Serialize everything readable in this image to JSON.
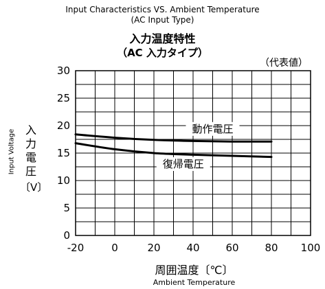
{
  "chart_data": {
    "type": "line",
    "title": "Input Characteristics VS. Ambient Temperature",
    "subtitle": "(AC Input Type)",
    "title_jp": "入力温度特性",
    "subtitle_jp": "（AC 入力タイプ）",
    "note": "（代表値）",
    "xlabel": "周囲温度〔℃〕",
    "xlabel_en": "Ambient Temperature",
    "ylabel": "入力電圧",
    "ylabel_unit": "〔V〕",
    "ylabel_en": "Input Voltage",
    "xlim": [
      -20,
      100
    ],
    "ylim": [
      0,
      30
    ],
    "x_ticks": [
      "-20",
      "0",
      "20",
      "40",
      "60",
      "80",
      "100"
    ],
    "y_ticks": [
      "0",
      "5",
      "10",
      "15",
      "20",
      "25",
      "30"
    ],
    "grid": true,
    "series": [
      {
        "name": "動作電圧",
        "x": [
          -20,
          0,
          20,
          40,
          60,
          80
        ],
        "values": [
          18.4,
          17.8,
          17.4,
          17.2,
          17.1,
          17.1
        ]
      },
      {
        "name": "復帰電圧",
        "x": [
          -20,
          0,
          20,
          40,
          60,
          80
        ],
        "values": [
          16.8,
          15.7,
          15.0,
          14.7,
          14.5,
          14.3
        ]
      }
    ]
  }
}
